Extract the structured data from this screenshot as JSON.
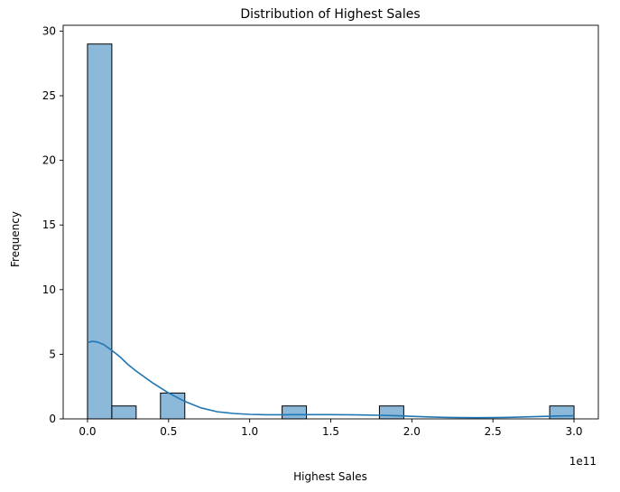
{
  "chart_data": {
    "type": "bar",
    "title": "Distribution of Highest Sales",
    "xlabel": "Highest Sales",
    "ylabel": "Frequency",
    "x_offset_label": "1e11",
    "xlim": [
      -0.15,
      3.15
    ],
    "ylim": [
      0,
      30.45
    ],
    "x_ticks": [
      {
        "value": 0.0,
        "label": "0.0"
      },
      {
        "value": 0.5,
        "label": "0.5"
      },
      {
        "value": 1.0,
        "label": "1.0"
      },
      {
        "value": 1.5,
        "label": "1.5"
      },
      {
        "value": 2.0,
        "label": "2.0"
      },
      {
        "value": 2.5,
        "label": "2.5"
      },
      {
        "value": 3.0,
        "label": "3.0"
      }
    ],
    "y_ticks": [
      {
        "value": 0,
        "label": "0"
      },
      {
        "value": 5,
        "label": "5"
      },
      {
        "value": 10,
        "label": "10"
      },
      {
        "value": 15,
        "label": "15"
      },
      {
        "value": 20,
        "label": "20"
      },
      {
        "value": 25,
        "label": "25"
      },
      {
        "value": 30,
        "label": "30"
      }
    ],
    "bins": [
      {
        "start": 0.0,
        "end": 0.15,
        "count": 29
      },
      {
        "start": 0.15,
        "end": 0.3,
        "count": 1
      },
      {
        "start": 0.3,
        "end": 0.45,
        "count": 0
      },
      {
        "start": 0.45,
        "end": 0.6,
        "count": 2
      },
      {
        "start": 0.6,
        "end": 0.75,
        "count": 0
      },
      {
        "start": 0.75,
        "end": 0.9,
        "count": 0
      },
      {
        "start": 0.9,
        "end": 1.05,
        "count": 0
      },
      {
        "start": 1.05,
        "end": 1.2,
        "count": 0
      },
      {
        "start": 1.2,
        "end": 1.35,
        "count": 1
      },
      {
        "start": 1.35,
        "end": 1.5,
        "count": 0
      },
      {
        "start": 1.5,
        "end": 1.65,
        "count": 0
      },
      {
        "start": 1.65,
        "end": 1.8,
        "count": 0
      },
      {
        "start": 1.8,
        "end": 1.95,
        "count": 1
      },
      {
        "start": 1.95,
        "end": 2.1,
        "count": 0
      },
      {
        "start": 2.1,
        "end": 2.25,
        "count": 0
      },
      {
        "start": 2.25,
        "end": 2.4,
        "count": 0
      },
      {
        "start": 2.4,
        "end": 2.55,
        "count": 0
      },
      {
        "start": 2.55,
        "end": 2.7,
        "count": 0
      },
      {
        "start": 2.7,
        "end": 2.85,
        "count": 0
      },
      {
        "start": 2.85,
        "end": 3.0,
        "count": 1
      }
    ],
    "kde": {
      "x": [
        0.0,
        0.03,
        0.06,
        0.1,
        0.15,
        0.2,
        0.25,
        0.3,
        0.4,
        0.5,
        0.6,
        0.7,
        0.8,
        0.9,
        1.0,
        1.1,
        1.2,
        1.3,
        1.4,
        1.5,
        1.6,
        1.7,
        1.8,
        1.9,
        2.0,
        2.1,
        2.2,
        2.3,
        2.4,
        2.5,
        2.6,
        2.7,
        2.8,
        2.9,
        3.0
      ],
      "y": [
        5.9,
        6.0,
        5.95,
        5.75,
        5.3,
        4.8,
        4.2,
        3.7,
        2.8,
        2.0,
        1.35,
        0.85,
        0.55,
        0.42,
        0.35,
        0.32,
        0.32,
        0.33,
        0.33,
        0.33,
        0.32,
        0.3,
        0.28,
        0.25,
        0.2,
        0.15,
        0.12,
        0.1,
        0.09,
        0.1,
        0.12,
        0.15,
        0.19,
        0.22,
        0.24
      ]
    },
    "colors": {
      "bar_fill": "#8cb8da",
      "bar_edge": "#000000",
      "kde_line": "#1f77b4"
    },
    "grid": false,
    "legend": "none"
  }
}
